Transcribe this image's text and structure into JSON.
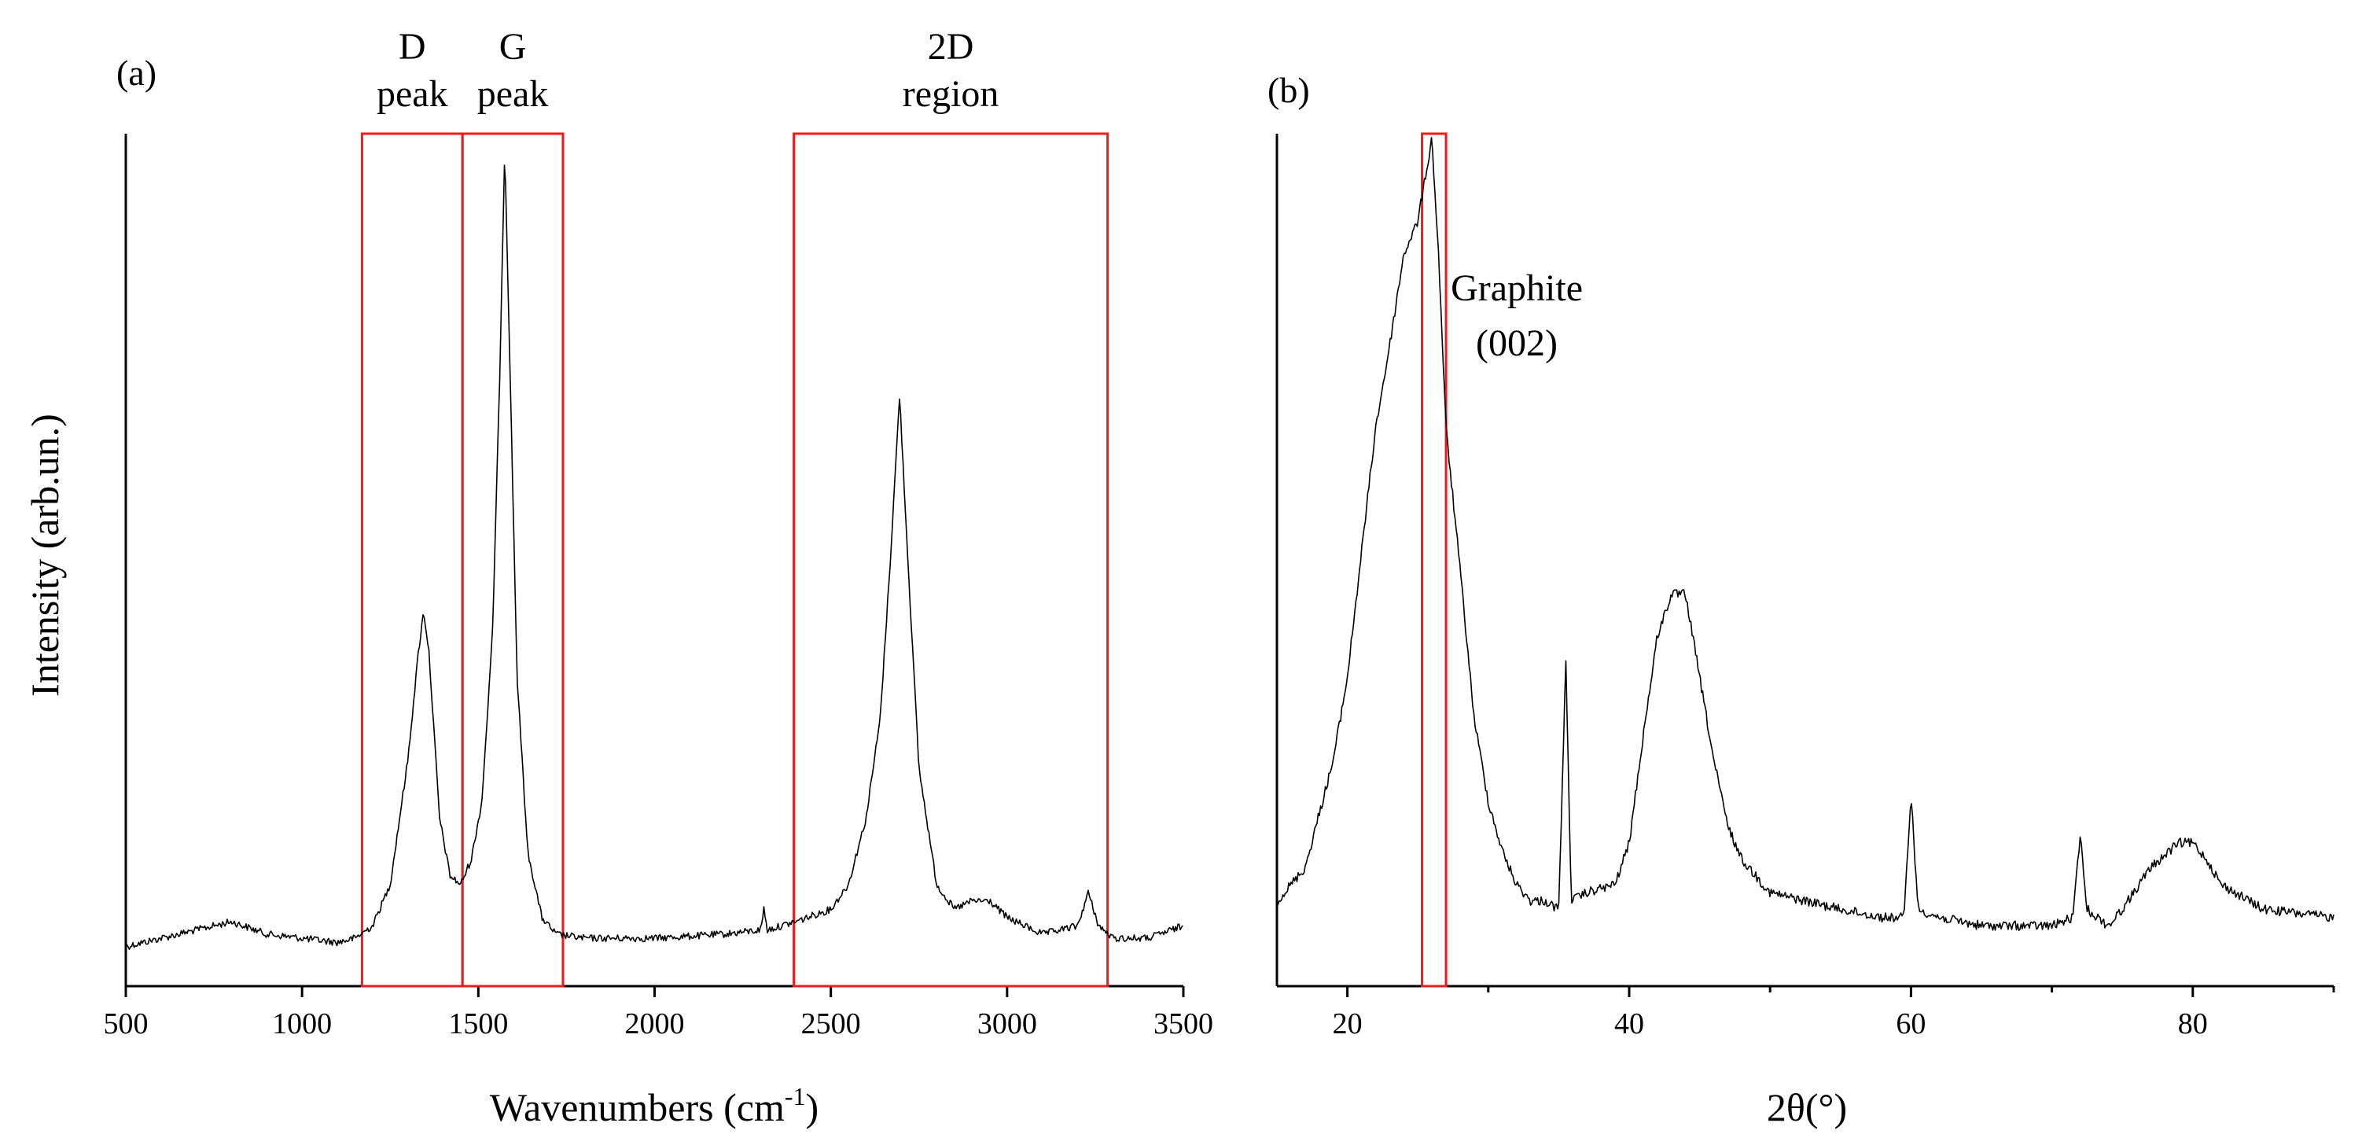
{
  "chart_data": [
    {
      "type": "line",
      "panel_label": "(a)",
      "xlabel": "Wavenumbers (cm",
      "xlabel_superscript": "-1",
      "xlabel_suffix": ")",
      "ylabel": "Intensity (arb.un.)",
      "xlim": [
        500,
        3500
      ],
      "ylim": [
        0,
        1
      ],
      "x_ticks": [
        "500",
        "1000",
        "1500",
        "2000",
        "2500",
        "3000",
        "3500"
      ],
      "y_ticks": [],
      "grid": false,
      "series": [
        {
          "points": [
            [
              500,
              0.025
            ],
            [
              600,
              0.035
            ],
            [
              700,
              0.045
            ],
            [
              800,
              0.055
            ],
            [
              900,
              0.04
            ],
            [
              1000,
              0.035
            ],
            [
              1100,
              0.03
            ],
            [
              1150,
              0.035
            ],
            [
              1200,
              0.05
            ],
            [
              1250,
              0.1
            ],
            [
              1300,
              0.25
            ],
            [
              1330,
              0.38
            ],
            [
              1345,
              0.43
            ],
            [
              1360,
              0.38
            ],
            [
              1390,
              0.18
            ],
            [
              1420,
              0.11
            ],
            [
              1450,
              0.1
            ],
            [
              1480,
              0.13
            ],
            [
              1510,
              0.2
            ],
            [
              1540,
              0.4
            ],
            [
              1560,
              0.7
            ],
            [
              1575,
              0.99
            ],
            [
              1590,
              0.72
            ],
            [
              1610,
              0.35
            ],
            [
              1640,
              0.14
            ],
            [
              1680,
              0.06
            ],
            [
              1720,
              0.04
            ],
            [
              1800,
              0.035
            ],
            [
              2000,
              0.035
            ],
            [
              2200,
              0.04
            ],
            [
              2300,
              0.045
            ],
            [
              2310,
              0.07
            ],
            [
              2320,
              0.045
            ],
            [
              2400,
              0.055
            ],
            [
              2500,
              0.07
            ],
            [
              2550,
              0.1
            ],
            [
              2600,
              0.18
            ],
            [
              2640,
              0.3
            ],
            [
              2670,
              0.5
            ],
            [
              2695,
              0.69
            ],
            [
              2720,
              0.48
            ],
            [
              2750,
              0.24
            ],
            [
              2800,
              0.1
            ],
            [
              2850,
              0.07
            ],
            [
              2900,
              0.08
            ],
            [
              2950,
              0.08
            ],
            [
              3000,
              0.06
            ],
            [
              3100,
              0.04
            ],
            [
              3200,
              0.05
            ],
            [
              3230,
              0.09
            ],
            [
              3260,
              0.05
            ],
            [
              3300,
              0.035
            ],
            [
              3400,
              0.035
            ],
            [
              3500,
              0.05
            ]
          ]
        }
      ],
      "annotations": [
        {
          "lines": [
            "D",
            "peak"
          ],
          "x_range": [
            1170,
            1455
          ]
        },
        {
          "lines": [
            "G",
            "peak"
          ],
          "x_range": [
            1455,
            1740
          ]
        },
        {
          "lines": [
            "2D",
            "region"
          ],
          "x_range": [
            2395,
            3285
          ]
        }
      ]
    },
    {
      "type": "line",
      "panel_label": "(b)",
      "xlabel": "2θ(°)",
      "ylabel": "",
      "xlim": [
        15,
        90
      ],
      "ylim": [
        0,
        1
      ],
      "x_ticks": [
        "20",
        "40",
        "60",
        "80"
      ],
      "y_ticks": [],
      "grid": false,
      "series": [
        {
          "points": [
            [
              15,
              0.08
            ],
            [
              17,
              0.12
            ],
            [
              19,
              0.25
            ],
            [
              20,
              0.35
            ],
            [
              21,
              0.5
            ],
            [
              22,
              0.65
            ],
            [
              23,
              0.75
            ],
            [
              24,
              0.86
            ],
            [
              25,
              0.9
            ],
            [
              25.5,
              0.95
            ],
            [
              26,
              1.0
            ],
            [
              26.5,
              0.85
            ],
            [
              27,
              0.65
            ],
            [
              28,
              0.48
            ],
            [
              29,
              0.3
            ],
            [
              30,
              0.2
            ],
            [
              31,
              0.14
            ],
            [
              32,
              0.1
            ],
            [
              33,
              0.08
            ],
            [
              34,
              0.08
            ],
            [
              35,
              0.07
            ],
            [
              35.5,
              0.37
            ],
            [
              35.9,
              0.08
            ],
            [
              37,
              0.09
            ],
            [
              39,
              0.1
            ],
            [
              40,
              0.15
            ],
            [
              41,
              0.28
            ],
            [
              42,
              0.4
            ],
            [
              43,
              0.45
            ],
            [
              44,
              0.45
            ],
            [
              45,
              0.35
            ],
            [
              46,
              0.25
            ],
            [
              47,
              0.17
            ],
            [
              48,
              0.13
            ],
            [
              50,
              0.09
            ],
            [
              55,
              0.07
            ],
            [
              58,
              0.06
            ],
            [
              59.5,
              0.06
            ],
            [
              60,
              0.21
            ],
            [
              60.5,
              0.07
            ],
            [
              62,
              0.06
            ],
            [
              65,
              0.05
            ],
            [
              70,
              0.05
            ],
            [
              71.5,
              0.06
            ],
            [
              72,
              0.16
            ],
            [
              72.5,
              0.07
            ],
            [
              74,
              0.05
            ],
            [
              75,
              0.07
            ],
            [
              77,
              0.12
            ],
            [
              79,
              0.15
            ],
            [
              80,
              0.15
            ],
            [
              81,
              0.13
            ],
            [
              82,
              0.1
            ],
            [
              85,
              0.07
            ],
            [
              90,
              0.06
            ]
          ]
        }
      ],
      "annotations": [
        {
          "lines": [
            "Graphite",
            "(002)"
          ],
          "x_range": [
            25.3,
            27.0
          ]
        }
      ]
    }
  ]
}
